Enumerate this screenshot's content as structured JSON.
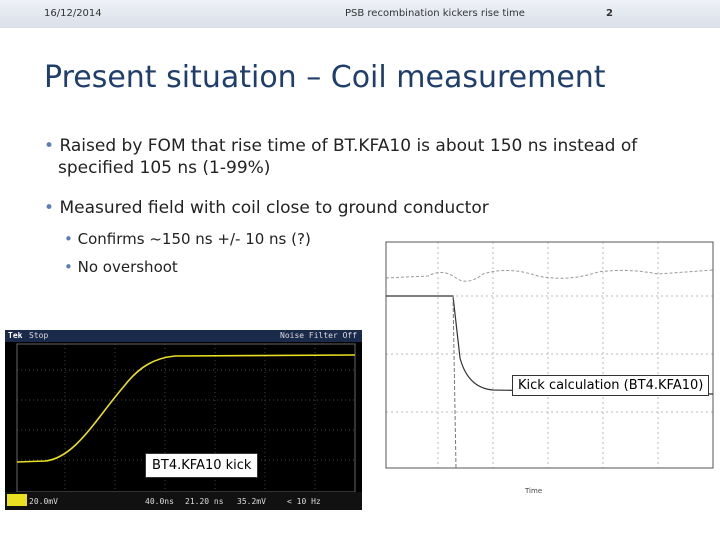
{
  "header": {
    "date": "16/12/2014",
    "title": "PSB recombination kickers rise time",
    "page": "2"
  },
  "title": "Present situation – Coil measurement",
  "bullets": [
    "Raised by FOM that rise time of BT.KFA10 is about 150 ns instead of specified 105 ns (1-99%)",
    "Measured field with coil close to ground conductor"
  ],
  "sub_bullets": [
    "Confirms ~150 ns +/- 10 ns (?)",
    "No overshoot"
  ],
  "scope": {
    "brand": "Tek",
    "state": "Stop",
    "filter": "Noise Filter Off",
    "channel": "20.0mV",
    "timebase": "40.0ns",
    "delay": "21.20 ns",
    "trigger": "35.2mV",
    "rate": "< 10 Hz",
    "caption": "BT4.KFA10 kick"
  },
  "plot": {
    "caption": "Kick calculation (BT4.KFA10)",
    "x_label": "Time"
  }
}
